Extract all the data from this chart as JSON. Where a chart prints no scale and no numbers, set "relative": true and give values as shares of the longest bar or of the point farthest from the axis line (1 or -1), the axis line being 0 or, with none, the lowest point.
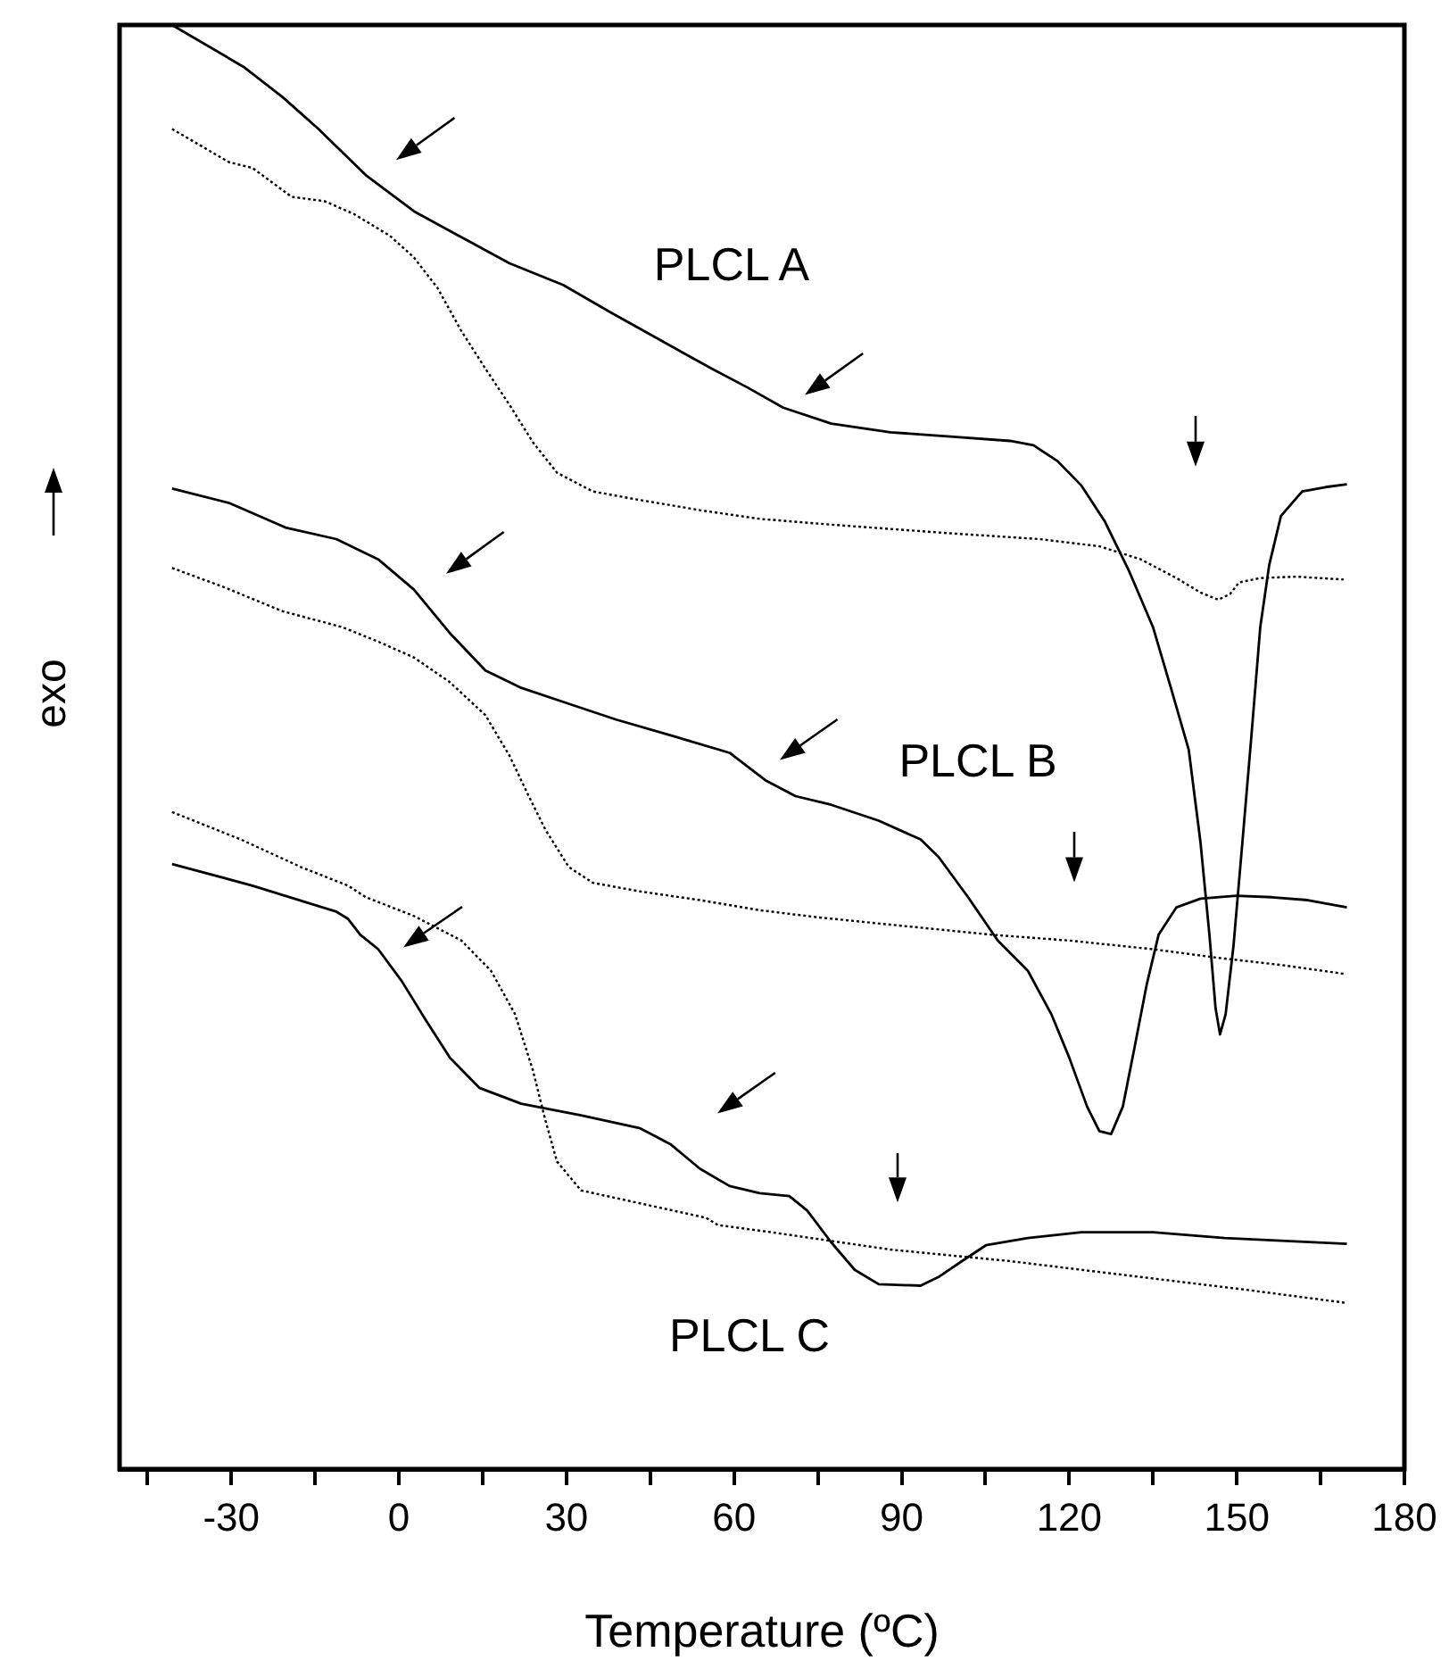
{
  "chart_data": {
    "type": "line",
    "relative": true,
    "xlabel": "Temperature (ºC)",
    "ylabel": "exo",
    "xlim": [
      -50,
      180
    ],
    "xticks": [
      {
        "value": -45,
        "label": null
      },
      -30,
      {
        "value": -15,
        "label": null
      },
      0,
      {
        "value": 15,
        "label": null
      },
      30,
      {
        "value": 45,
        "label": null
      },
      60,
      {
        "value": 75,
        "label": null
      },
      90,
      {
        "value": 105,
        "label": null
      },
      120,
      {
        "value": 135,
        "label": null
      },
      150,
      {
        "value": 165,
        "label": null
      },
      180
    ],
    "grid": false,
    "legend": false,
    "marker": "none",
    "annotations": [
      "PLCL A",
      "PLCL B",
      "PLCL C"
    ],
    "series": [
      {
        "color": "#000000",
        "line_style": "solid",
        "x": [
          -40.6,
          -27.8,
          -20.8,
          -14.4,
          -5.9,
          2.7,
          11.2,
          19.8,
          29.4,
          37.9,
          51.8,
          56.0,
          62.4,
          68.8,
          77.4,
          88.0,
          98.7,
          109.4,
          113.6,
          117.9,
          122.2,
          126.4,
          130.7,
          135.0,
          138.2,
          141.4,
          143.5,
          145.1,
          146.2,
          147.0,
          148.0,
          149.4,
          151.0,
          152.6,
          154.2,
          155.8,
          157.9,
          161.7,
          165.9,
          169.7
        ],
        "values": [
          1.0,
          0.971,
          0.95,
          0.928,
          0.896,
          0.871,
          0.853,
          0.835,
          0.82,
          0.801,
          0.771,
          0.762,
          0.749,
          0.735,
          0.724,
          0.718,
          0.715,
          0.712,
          0.709,
          0.698,
          0.681,
          0.656,
          0.622,
          0.583,
          0.541,
          0.498,
          0.434,
          0.37,
          0.319,
          0.301,
          0.315,
          0.362,
          0.434,
          0.507,
          0.583,
          0.626,
          0.66,
          0.677,
          0.68,
          0.682
        ]
      },
      {
        "color": "#000000",
        "line_style": "dotted",
        "x": [
          -40.6,
          -30.4,
          -26.2,
          -19.2,
          -13.3,
          -8.0,
          -1.6,
          2.7,
          6.9,
          11.2,
          15.5,
          19.8,
          24.0,
          28.3,
          34.7,
          43.2,
          53.9,
          64.6,
          77.4,
          98.7,
          114.7,
          125.4,
          132.8,
          139.2,
          143.5,
          146.7,
          148.8,
          150.4,
          154.2,
          160.6,
          169.1
        ],
        "values": [
          0.928,
          0.905,
          0.901,
          0.881,
          0.878,
          0.869,
          0.854,
          0.839,
          0.818,
          0.788,
          0.762,
          0.737,
          0.711,
          0.69,
          0.677,
          0.671,
          0.664,
          0.658,
          0.654,
          0.648,
          0.644,
          0.639,
          0.63,
          0.617,
          0.607,
          0.602,
          0.606,
          0.614,
          0.617,
          0.618,
          0.616
        ]
      },
      {
        "color": "#000000",
        "line_style": "solid",
        "x": [
          -40.6,
          -30.4,
          -20.3,
          -11.2,
          -3.7,
          2.7,
          9.1,
          15.5,
          21.9,
          30.4,
          38.9,
          49.6,
          59.2,
          65.6,
          71.0,
          77.4,
          85.9,
          93.4,
          96.6,
          101.9,
          107.2,
          112.6,
          116.8,
          120.0,
          123.2,
          125.4,
          127.5,
          129.6,
          131.8,
          133.9,
          136.0,
          139.2,
          143.5,
          149.9,
          156.3,
          162.7,
          169.7
        ],
        "values": [
          0.679,
          0.669,
          0.652,
          0.644,
          0.63,
          0.609,
          0.579,
          0.553,
          0.541,
          0.53,
          0.519,
          0.507,
          0.496,
          0.477,
          0.466,
          0.46,
          0.449,
          0.436,
          0.424,
          0.396,
          0.366,
          0.345,
          0.315,
          0.285,
          0.251,
          0.234,
          0.232,
          0.251,
          0.294,
          0.336,
          0.37,
          0.389,
          0.395,
          0.397,
          0.396,
          0.394,
          0.389
        ]
      },
      {
        "color": "#000000",
        "line_style": "dotted",
        "x": [
          -40.6,
          -31.5,
          -20.8,
          -10.1,
          -3.7,
          2.7,
          9.1,
          15.5,
          19.8,
          23.0,
          26.2,
          30.4,
          34.7,
          43.2,
          53.9,
          64.6,
          75.2,
          88.0,
          106.2,
          120.0,
          135.0,
          146.7,
          158.1,
          169.1
        ],
        "values": [
          0.624,
          0.611,
          0.594,
          0.583,
          0.573,
          0.562,
          0.545,
          0.522,
          0.494,
          0.468,
          0.443,
          0.417,
          0.406,
          0.4,
          0.394,
          0.387,
          0.382,
          0.377,
          0.37,
          0.366,
          0.36,
          0.354,
          0.349,
          0.343
        ]
      },
      {
        "color": "#000000",
        "line_style": "solid",
        "x": [
          -40.6,
          -26.2,
          -11.2,
          -9.1,
          -6.9,
          -3.7,
          0.5,
          4.8,
          9.1,
          14.4,
          21.9,
          32.6,
          43.2,
          48.6,
          53.9,
          59.2,
          64.6,
          69.9,
          73.1,
          77.4,
          81.6,
          85.9,
          93.4,
          96.6,
          100.8,
          105.1,
          112.6,
          122.2,
          135.0,
          147.8,
          169.7
        ],
        "values": [
          0.419,
          0.404,
          0.386,
          0.381,
          0.37,
          0.36,
          0.338,
          0.311,
          0.285,
          0.264,
          0.253,
          0.245,
          0.236,
          0.225,
          0.208,
          0.196,
          0.191,
          0.189,
          0.179,
          0.157,
          0.138,
          0.128,
          0.127,
          0.133,
          0.144,
          0.155,
          0.16,
          0.164,
          0.164,
          0.16,
          0.156
        ]
      },
      {
        "color": "#000000",
        "line_style": "dotted",
        "x": [
          -40.6,
          -28.3,
          -17.6,
          -9.1,
          -5.9,
          2.7,
          11.2,
          16.5,
          20.8,
          24.0,
          26.2,
          28.3,
          32.6,
          43.2,
          55.0,
          57.1,
          66.7,
          88.0,
          109.4,
          130.7,
          152.0,
          169.7
        ],
        "values": [
          0.455,
          0.436,
          0.417,
          0.404,
          0.396,
          0.383,
          0.366,
          0.345,
          0.315,
          0.276,
          0.242,
          0.213,
          0.193,
          0.184,
          0.174,
          0.169,
          0.164,
          0.152,
          0.144,
          0.134,
          0.124,
          0.115
        ]
      }
    ]
  }
}
